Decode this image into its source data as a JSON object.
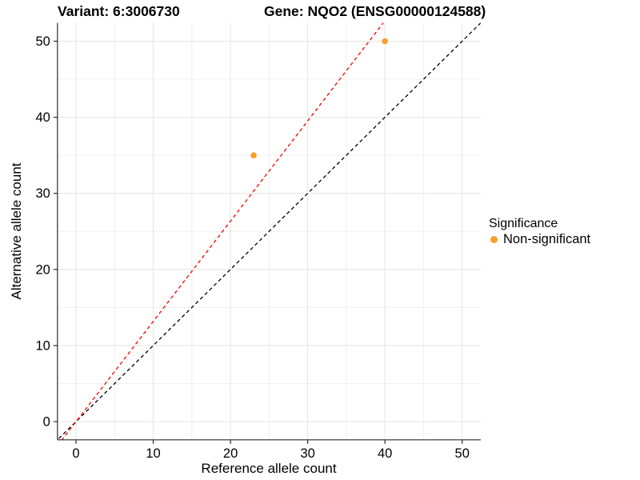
{
  "header": {
    "variant_title": "Variant: 6:3006730",
    "gene_title": "Gene: NQO2 (ENSG00000124588)"
  },
  "chart_data": {
    "type": "scatter",
    "title_left": "Variant: 6:3006730",
    "title_right": "Gene: NQO2 (ENSG00000124588)",
    "xlabel": "Reference allele count",
    "ylabel": "Alternative allele count",
    "xlim": [
      -2.4,
      52.4
    ],
    "ylim": [
      -2.4,
      52.4
    ],
    "x_ticks": [
      0,
      10,
      20,
      30,
      40,
      50
    ],
    "y_ticks": [
      0,
      10,
      20,
      30,
      40,
      50
    ],
    "x_minor_ticks": [
      5,
      15,
      25,
      35,
      45
    ],
    "y_minor_ticks": [
      5,
      15,
      25,
      35,
      45
    ],
    "grid": "on",
    "legend_position": "right",
    "points": [
      {
        "x": 23,
        "y": 35,
        "series": "Non-significant"
      },
      {
        "x": 40,
        "y": 50,
        "series": "Non-significant"
      }
    ],
    "lines": [
      {
        "name": "identity",
        "slope": 1,
        "intercept": 0,
        "style": "dashed",
        "color": "#000000"
      },
      {
        "name": "fit-through-origin",
        "slope": 1.3175,
        "intercept": 0,
        "style": "dashed",
        "color": "#FF0000"
      }
    ],
    "colors": {
      "point": "#F8A029",
      "grid_major": "#E4E4E4",
      "grid_minor": "#F0F0F0",
      "axis": "#2B2B2B",
      "tick_label": "#000000"
    },
    "legend": {
      "title": "Significance",
      "items": [
        {
          "label": "Non-significant",
          "color": "#F8A029",
          "marker": "circle"
        }
      ]
    }
  }
}
